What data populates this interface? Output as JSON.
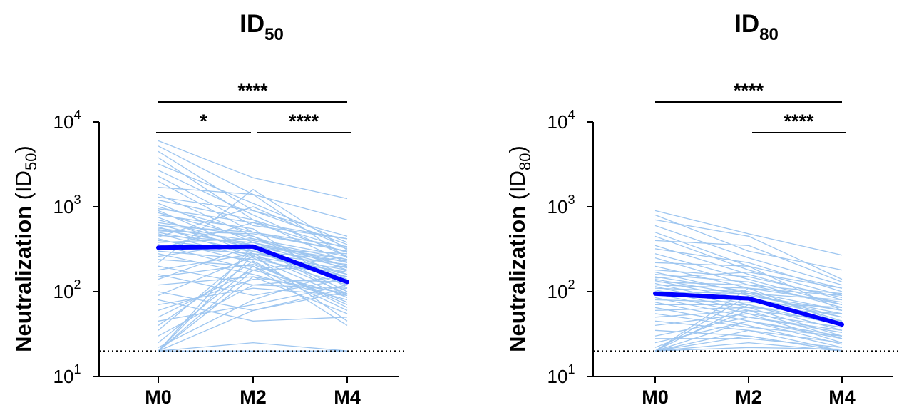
{
  "chart_data": [
    {
      "type": "line",
      "title": "ID",
      "title_sub": "50",
      "ylabel": "Neutralization",
      "ylabel_unit": "(ID",
      "ylabel_sub": "50",
      "ylabel_close": ")",
      "categories": [
        "M0",
        "M2",
        "M4"
      ],
      "yscale": "log",
      "ylim": [
        10,
        10000
      ],
      "yticks": [
        {
          "base": "10",
          "exp": "1"
        },
        {
          "base": "10",
          "exp": "2"
        },
        {
          "base": "10",
          "exp": "3"
        },
        {
          "base": "10",
          "exp": "4"
        }
      ],
      "limit_of_detection": 20,
      "series": [
        {
          "role": "median",
          "values": [
            330,
            340,
            130
          ],
          "color": "#0000ff"
        }
      ],
      "individual_color": "#9ec6f0",
      "individuals": [
        [
          6000,
          2200,
          1250
        ],
        [
          5200,
          1400,
          700
        ],
        [
          4500,
          900,
          450
        ],
        [
          3800,
          700,
          320
        ],
        [
          3200,
          1100,
          380
        ],
        [
          2700,
          800,
          260
        ],
        [
          2300,
          600,
          420
        ],
        [
          2000,
          500,
          300
        ],
        [
          1700,
          1400,
          250
        ],
        [
          1400,
          450,
          180
        ],
        [
          1300,
          900,
          360
        ],
        [
          1200,
          700,
          220
        ],
        [
          1100,
          380,
          160
        ],
        [
          1000,
          500,
          300
        ],
        [
          950,
          650,
          420
        ],
        [
          900,
          300,
          150
        ],
        [
          850,
          420,
          200
        ],
        [
          800,
          550,
          110
        ],
        [
          750,
          280,
          95
        ],
        [
          700,
          350,
          190
        ],
        [
          650,
          450,
          140
        ],
        [
          620,
          320,
          280
        ],
        [
          600,
          500,
          340
        ],
        [
          580,
          260,
          120
        ],
        [
          560,
          400,
          240
        ],
        [
          540,
          350,
          100
        ],
        [
          520,
          480,
          300
        ],
        [
          500,
          300,
          160
        ],
        [
          480,
          250,
          85
        ],
        [
          460,
          380,
          200
        ],
        [
          440,
          1000,
          330
        ],
        [
          420,
          220,
          70
        ],
        [
          400,
          300,
          130
        ],
        [
          380,
          420,
          260
        ],
        [
          360,
          180,
          90
        ],
        [
          340,
          280,
          210
        ],
        [
          320,
          650,
          290
        ],
        [
          300,
          240,
          150
        ],
        [
          280,
          160,
          80
        ],
        [
          260,
          380,
          220
        ],
        [
          240,
          200,
          60
        ],
        [
          220,
          1600,
          310
        ],
        [
          200,
          120,
          110
        ],
        [
          180,
          280,
          180
        ],
        [
          160,
          90,
          140
        ],
        [
          150,
          210,
          75
        ],
        [
          140,
          350,
          240
        ],
        [
          120,
          150,
          55
        ],
        [
          100,
          60,
          100
        ],
        [
          90,
          260,
          170
        ],
        [
          80,
          45,
          50
        ],
        [
          70,
          110,
          90
        ],
        [
          60,
          140,
          130
        ],
        [
          50,
          180,
          200
        ],
        [
          45,
          70,
          120
        ],
        [
          40,
          230,
          65
        ],
        [
          35,
          300,
          230
        ],
        [
          30,
          120,
          150
        ],
        [
          25,
          200,
          40
        ],
        [
          22,
          80,
          180
        ],
        [
          20,
          150,
          95
        ],
        [
          20,
          20,
          20
        ],
        [
          20,
          270,
          45
        ],
        [
          20,
          60,
          110
        ],
        [
          20,
          350,
          90
        ],
        [
          20,
          25,
          20
        ],
        [
          20,
          180,
          260
        ]
      ],
      "significance": [
        {
          "label": "*",
          "from": "M0",
          "to": "M2",
          "tier": 0
        },
        {
          "label": "****",
          "from": "M2",
          "to": "M4",
          "tier": 0
        },
        {
          "label": "****",
          "from": "M0",
          "to": "M4",
          "tier": 1
        }
      ]
    },
    {
      "type": "line",
      "title": "ID",
      "title_sub": "80",
      "ylabel": "Neutralization",
      "ylabel_unit": "(ID",
      "ylabel_sub": "80",
      "ylabel_close": ")",
      "categories": [
        "M0",
        "M2",
        "M4"
      ],
      "yscale": "log",
      "ylim": [
        10,
        10000
      ],
      "yticks": [
        {
          "base": "10",
          "exp": "1"
        },
        {
          "base": "10",
          "exp": "2"
        },
        {
          "base": "10",
          "exp": "3"
        },
        {
          "base": "10",
          "exp": "4"
        }
      ],
      "limit_of_detection": 20,
      "series": [
        {
          "role": "median",
          "values": [
            95,
            83,
            41
          ],
          "color": "#0000ff"
        }
      ],
      "individual_color": "#9ec6f0",
      "individuals": [
        [
          900,
          480,
          270
        ],
        [
          800,
          300,
          180
        ],
        [
          700,
          450,
          140
        ],
        [
          600,
          250,
          120
        ],
        [
          500,
          200,
          110
        ],
        [
          450,
          180,
          90
        ],
        [
          400,
          350,
          130
        ],
        [
          350,
          160,
          80
        ],
        [
          320,
          220,
          100
        ],
        [
          280,
          140,
          70
        ],
        [
          250,
          120,
          95
        ],
        [
          220,
          200,
          60
        ],
        [
          200,
          110,
          75
        ],
        [
          180,
          150,
          85
        ],
        [
          170,
          95,
          50
        ],
        [
          160,
          130,
          65
        ],
        [
          150,
          100,
          45
        ],
        [
          145,
          170,
          110
        ],
        [
          140,
          90,
          55
        ],
        [
          135,
          80,
          40
        ],
        [
          130,
          120,
          70
        ],
        [
          125,
          70,
          35
        ],
        [
          120,
          110,
          90
        ],
        [
          115,
          65,
          30
        ],
        [
          110,
          100,
          60
        ],
        [
          105,
          60,
          45
        ],
        [
          100,
          95,
          80
        ],
        [
          95,
          55,
          25
        ],
        [
          90,
          85,
          50
        ],
        [
          85,
          50,
          35
        ],
        [
          80,
          75,
          65
        ],
        [
          75,
          45,
          28
        ],
        [
          70,
          70,
          40
        ],
        [
          65,
          40,
          22
        ],
        [
          60,
          65,
          55
        ],
        [
          55,
          38,
          30
        ],
        [
          50,
          60,
          45
        ],
        [
          45,
          35,
          25
        ],
        [
          40,
          55,
          38
        ],
        [
          35,
          30,
          20
        ],
        [
          30,
          50,
          33
        ],
        [
          28,
          28,
          22
        ],
        [
          25,
          45,
          30
        ],
        [
          22,
          60,
          28
        ],
        [
          20,
          35,
          20
        ],
        [
          20,
          25,
          20
        ],
        [
          20,
          70,
          35
        ],
        [
          20,
          45,
          24
        ],
        [
          20,
          90,
          60
        ],
        [
          20,
          30,
          20
        ],
        [
          20,
          22,
          21
        ],
        [
          20,
          110,
          42
        ]
      ],
      "significance": [
        {
          "label": "****",
          "from": "M2",
          "to": "M4",
          "tier": 0
        },
        {
          "label": "****",
          "from": "M0",
          "to": "M4",
          "tier": 1
        }
      ]
    }
  ]
}
